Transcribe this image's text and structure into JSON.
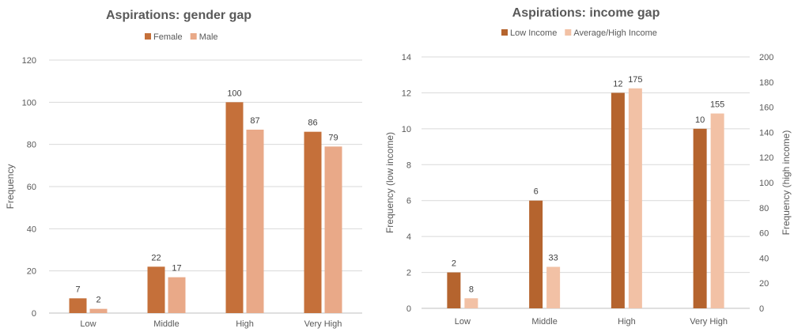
{
  "chart_data": [
    {
      "type": "bar",
      "title": "Aspirations: gender gap",
      "categories": [
        "Low",
        "Middle",
        "High",
        "Very High"
      ],
      "series": [
        {
          "name": "Female",
          "values": [
            7,
            22,
            100,
            86
          ],
          "color": "#c5703a"
        },
        {
          "name": "Male",
          "values": [
            2,
            17,
            87,
            79
          ],
          "color": "#e9a988"
        }
      ],
      "ylabel": "Frequency",
      "ylim": [
        0,
        120
      ],
      "yticks": [
        0,
        20,
        40,
        60,
        80,
        100,
        120
      ],
      "legend_position": "top",
      "grid": true
    },
    {
      "type": "bar",
      "title": "Aspirations: income gap",
      "categories": [
        "Low",
        "Middle",
        "High",
        "Very High"
      ],
      "series": [
        {
          "name": "Low Income",
          "values": [
            2,
            6,
            12,
            10
          ],
          "axis": "left",
          "color": "#b5642e"
        },
        {
          "name": "Average/High Income",
          "values": [
            8,
            33,
            175,
            155
          ],
          "axis": "right",
          "color": "#f2c1a5"
        }
      ],
      "ylabel": "Frequency (low income)",
      "ylim": [
        0,
        14
      ],
      "yticks": [
        0,
        2,
        4,
        6,
        8,
        10,
        12,
        14
      ],
      "y2label": "Frequency (high income)",
      "y2lim": [
        0,
        200
      ],
      "y2ticks": [
        0,
        20,
        40,
        60,
        80,
        100,
        120,
        140,
        160,
        180,
        200
      ],
      "legend_position": "top",
      "grid": true
    }
  ]
}
